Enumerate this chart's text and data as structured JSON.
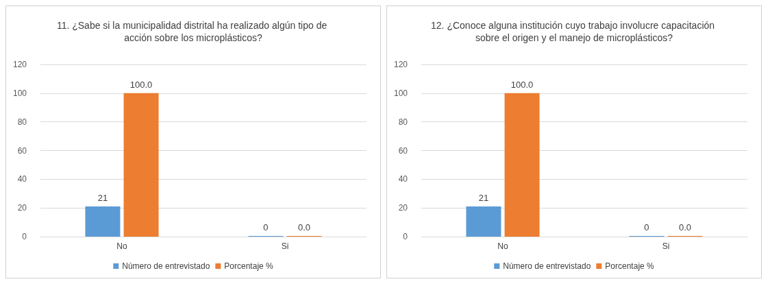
{
  "chart_data": [
    {
      "type": "bar",
      "title": "11. ¿Sabe si la municipalidad distrital ha realizado algún tipo de acción sobre los microplásticos?",
      "categories": [
        "No",
        "Si"
      ],
      "series": [
        {
          "name": "Número de entrevistado",
          "color": "#5b9bd5",
          "values": [
            21,
            0
          ],
          "value_labels": [
            "21",
            "0"
          ]
        },
        {
          "name": "Porcentaje %",
          "color": "#ed7d31",
          "values": [
            100,
            0
          ],
          "value_labels": [
            "100.0",
            "0.0"
          ]
        }
      ],
      "ylim": [
        0,
        120
      ],
      "yticks": [
        0,
        20,
        40,
        60,
        80,
        100,
        120
      ],
      "grid": "y",
      "legend": "bottom"
    },
    {
      "type": "bar",
      "title": "12. ¿Conoce alguna institución cuyo trabajo involucre capacitación sobre el origen y el manejo de microplásticos?",
      "categories": [
        "No",
        "Si"
      ],
      "series": [
        {
          "name": "Número de entrevistado",
          "color": "#5b9bd5",
          "values": [
            21,
            0
          ],
          "value_labels": [
            "21",
            "0"
          ]
        },
        {
          "name": "Porcentaje %",
          "color": "#ed7d31",
          "values": [
            100,
            0
          ],
          "value_labels": [
            "100.0",
            "0.0"
          ]
        }
      ],
      "ylim": [
        0,
        120
      ],
      "yticks": [
        0,
        20,
        40,
        60,
        80,
        100,
        120
      ],
      "grid": "y",
      "legend": "bottom"
    }
  ]
}
